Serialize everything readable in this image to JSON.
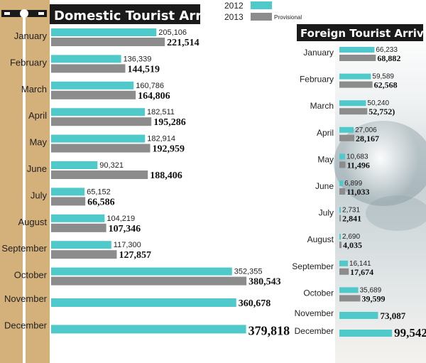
{
  "legend": {
    "year_2012": "2012",
    "year_2013": "2013",
    "note_2013": "Provisional"
  },
  "colors": {
    "y2012": "#4fc9c9",
    "y2013": "#8c8c8c",
    "title_bg": "#1a1a1a",
    "sidebar": "#d4b07a"
  },
  "chart_data": [
    {
      "type": "bar",
      "orientation": "horizontal",
      "title": "Domestic Tourist Arrivals",
      "categories": [
        "January",
        "February",
        "March",
        "April",
        "May",
        "June",
        "July",
        "August",
        "September",
        "October",
        "November",
        "December"
      ],
      "series": [
        {
          "name": "2012",
          "values": [
            205106,
            136339,
            160786,
            182511,
            182914,
            90321,
            65152,
            104219,
            117300,
            352355,
            null,
            null
          ],
          "labels": [
            "205,106",
            "136,339",
            "160,786",
            "182,511",
            "182,914",
            "90,321",
            "65,152",
            "104,219",
            "117,300",
            "352,355",
            null,
            null
          ]
        },
        {
          "name": "2013",
          "values": [
            221514,
            144519,
            164806,
            195286,
            192959,
            188406,
            66586,
            107346,
            127857,
            380543,
            360678,
            379818
          ],
          "labels": [
            "221,514",
            "144,519",
            "164,806",
            "195,286",
            "192,959",
            "188,406",
            "66,586",
            "107,346",
            "127,857",
            "380,543",
            "360,678",
            "379,818"
          ]
        }
      ]
    },
    {
      "type": "bar",
      "orientation": "horizontal",
      "title": "Foreign Tourist Arrivals",
      "categories": [
        "January",
        "February",
        "March",
        "April",
        "May",
        "June",
        "July",
        "August",
        "September",
        "October",
        "November",
        "December"
      ],
      "series": [
        {
          "name": "2012",
          "values": [
            66233,
            59589,
            50240,
            27006,
            10683,
            6899,
            2731,
            2690,
            16141,
            35689,
            73087,
            99542
          ],
          "labels": [
            "66,233",
            "59,589",
            "50,240",
            "27,006",
            "10,683",
            "6,899",
            "2,731",
            "2,690",
            "16,141",
            "35,689",
            "73,087",
            "99,542"
          ]
        },
        {
          "name": "2013",
          "values": [
            68882,
            62568,
            52752,
            28167,
            11496,
            11033,
            2841,
            4035,
            17674,
            39599,
            null,
            null
          ],
          "labels": [
            "68,882",
            "62,568",
            "52,752)",
            "28,167",
            "11,496",
            "11,033",
            "2,841",
            "4,035",
            "17,674",
            "39,599",
            null,
            null
          ]
        }
      ]
    }
  ]
}
